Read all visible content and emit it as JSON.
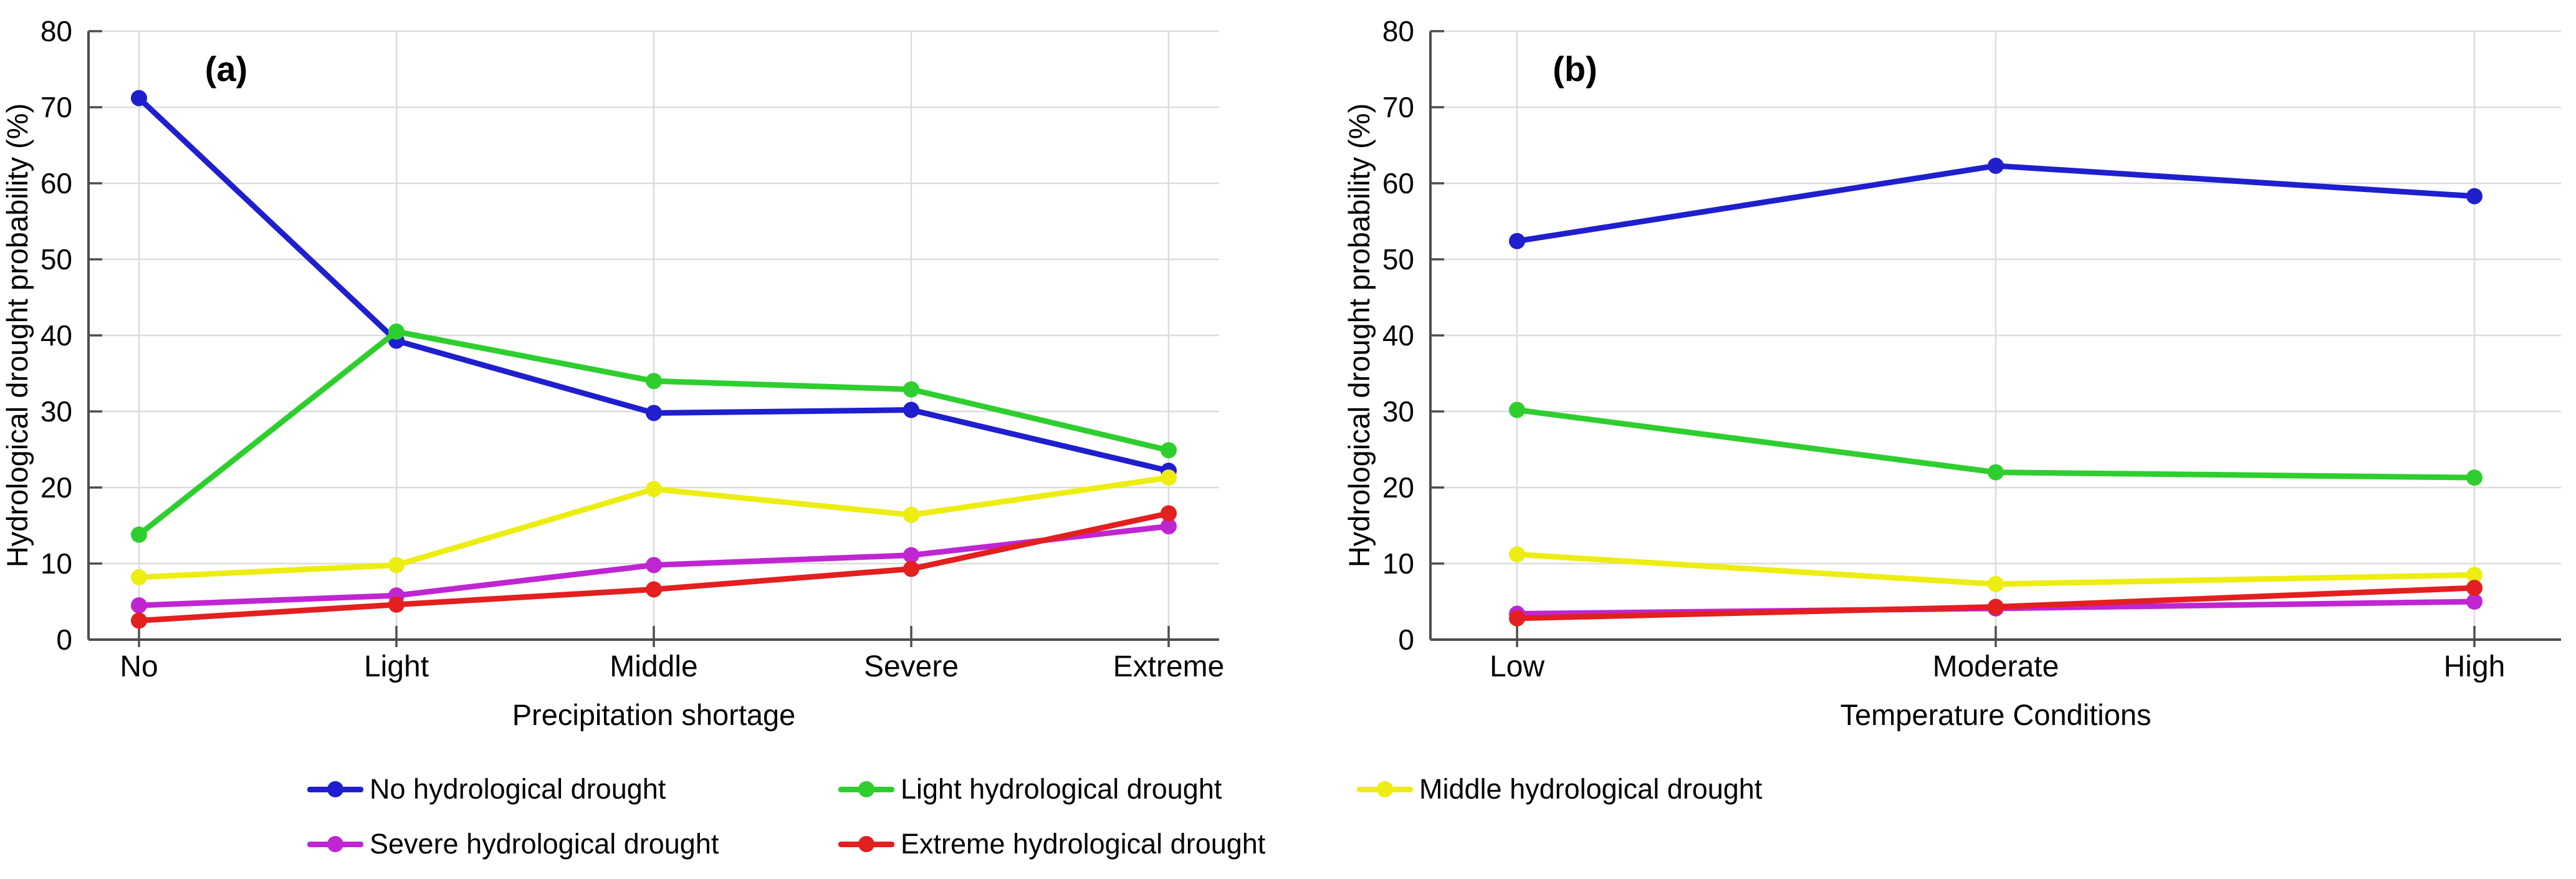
{
  "figure": {
    "background": "#ffffff",
    "grid_color": "#dcdcdc",
    "axis_color": "#4d4d4d",
    "text_color": "#000000"
  },
  "chart_data": [
    {
      "type": "line",
      "title": "(a)",
      "xlabel": "Precipitation shortage",
      "ylabel": "Hydrological drought probability (%)",
      "categories": [
        "No",
        "Light",
        "Middle",
        "Severe",
        "Extreme"
      ],
      "ylim": [
        0,
        80
      ],
      "yticks": [
        0,
        10,
        20,
        30,
        40,
        50,
        60,
        70,
        80
      ],
      "grid": true,
      "legend_position": "below",
      "series": [
        {
          "name": "No hydrological drought",
          "color": "#1f1fce",
          "values": [
            71.2,
            39.3,
            29.8,
            30.2,
            22.2
          ]
        },
        {
          "name": "Light hydrological drought",
          "color": "#2fce2f",
          "values": [
            13.8,
            40.5,
            34.0,
            32.9,
            24.9
          ]
        },
        {
          "name": "Middle hydrological drought",
          "color": "#eded12",
          "values": [
            8.2,
            9.8,
            19.8,
            16.4,
            21.3
          ]
        },
        {
          "name": "Severe hydrological drought",
          "color": "#bf26d2",
          "values": [
            4.5,
            5.8,
            9.8,
            11.1,
            14.9
          ]
        },
        {
          "name": "Extreme hydrological drought",
          "color": "#e31f1f",
          "values": [
            2.5,
            4.6,
            6.6,
            9.3,
            16.6
          ]
        }
      ]
    },
    {
      "type": "line",
      "title": "(b)",
      "xlabel": "Temperature Conditions",
      "ylabel": "Hydrological drought probability (%)",
      "categories": [
        "Low",
        "Moderate",
        "High"
      ],
      "ylim": [
        0,
        80
      ],
      "yticks": [
        0,
        10,
        20,
        30,
        40,
        50,
        60,
        70,
        80
      ],
      "grid": true,
      "legend_position": "below",
      "series": [
        {
          "name": "No hydrological drought",
          "color": "#1f1fce",
          "values": [
            52.4,
            62.3,
            58.3
          ]
        },
        {
          "name": "Light hydrological drought",
          "color": "#2fce2f",
          "values": [
            30.2,
            22.0,
            21.3
          ]
        },
        {
          "name": "Middle hydrological drought",
          "color": "#eded12",
          "values": [
            11.2,
            7.3,
            8.5
          ]
        },
        {
          "name": "Severe hydrological drought",
          "color": "#bf26d2",
          "values": [
            3.4,
            4.1,
            5.0
          ]
        },
        {
          "name": "Extreme hydrological drought",
          "color": "#e31f1f",
          "values": [
            2.8,
            4.3,
            6.8
          ]
        }
      ]
    }
  ],
  "legend": {
    "items": [
      {
        "label": "No hydrological drought",
        "color": "#1f1fce",
        "row": 0,
        "col": 0
      },
      {
        "label": "Light hydrological drought",
        "color": "#2fce2f",
        "row": 0,
        "col": 1
      },
      {
        "label": "Middle hydrological drought",
        "color": "#eded12",
        "row": 0,
        "col": 2
      },
      {
        "label": "Severe hydrological drought",
        "color": "#bf26d2",
        "row": 1,
        "col": 0
      },
      {
        "label": "Extreme hydrological drought",
        "color": "#e31f1f",
        "row": 1,
        "col": 1
      }
    ]
  }
}
